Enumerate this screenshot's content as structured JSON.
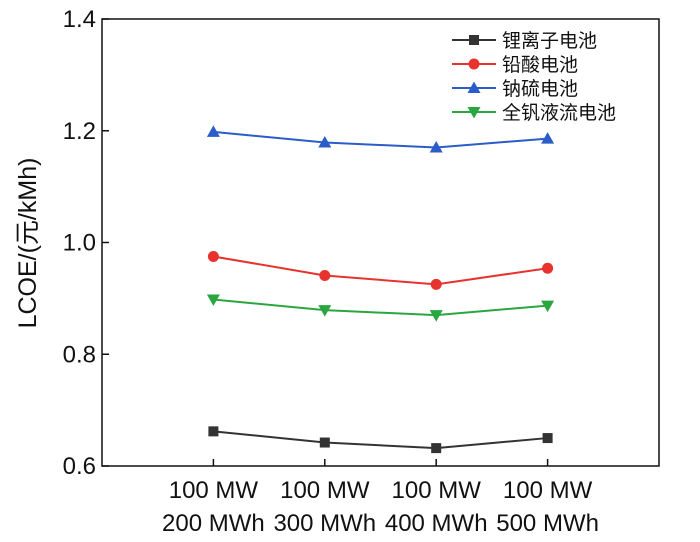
{
  "chart_data": {
    "type": "line",
    "title": "",
    "xlabel": "",
    "ylabel": "LCOE/(元/kMh)",
    "ylim": [
      0.6,
      1.4
    ],
    "yticks": [
      "0.6",
      "0.8",
      "1.0",
      "1.2",
      "1.4"
    ],
    "categories": [
      [
        "100 MW",
        "200 MWh"
      ],
      [
        "100 MW",
        "300 MWh"
      ],
      [
        "100 MW",
        "400 MWh"
      ],
      [
        "100 MW",
        "500 MWh"
      ]
    ],
    "legend_position": "top-right",
    "grid": false,
    "series": [
      {
        "name": "锂离子电池",
        "color": "#333333",
        "marker": "square",
        "values": [
          0.662,
          0.642,
          0.632,
          0.65
        ]
      },
      {
        "name": "铅酸电池",
        "color": "#e8322d",
        "marker": "circle",
        "values": [
          0.975,
          0.941,
          0.925,
          0.954
        ]
      },
      {
        "name": "钠硫电池",
        "color": "#2b5cc8",
        "marker": "triangle-up",
        "values": [
          1.198,
          1.179,
          1.17,
          1.186
        ]
      },
      {
        "name": "全钒液流电池",
        "color": "#2aa641",
        "marker": "triangle-down",
        "values": [
          0.898,
          0.879,
          0.87,
          0.887
        ]
      }
    ]
  }
}
